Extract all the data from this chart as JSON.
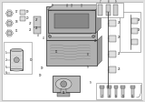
{
  "bg": "#ffffff",
  "line_color": "#1a1a1a",
  "gray_fill": "#d0d0d0",
  "light_gray": "#e8e8e8",
  "dark_gray": "#888888",
  "mid_gray": "#b0b0b0",
  "lw_thick": 0.7,
  "lw_mid": 0.45,
  "lw_thin": 0.25,
  "fig_bg": "#e0e0e0"
}
